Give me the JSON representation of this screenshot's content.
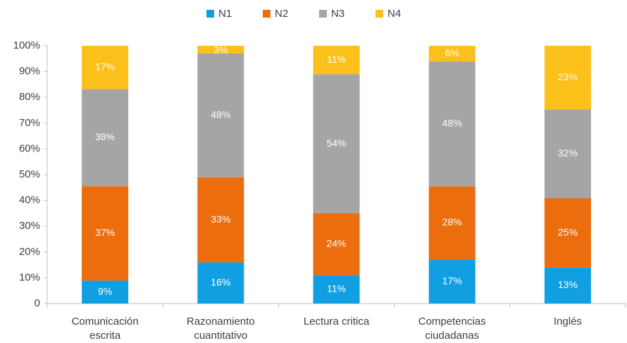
{
  "chart_data": {
    "type": "bar",
    "stacked": "percent",
    "categories": [
      [
        "Comunicación",
        "escrita"
      ],
      [
        "Razonamiento",
        "cuantitativo"
      ],
      [
        "Lectura critica"
      ],
      [
        "Competencias",
        "ciudadanas"
      ],
      [
        "Inglés"
      ]
    ],
    "series": [
      {
        "name": "N1",
        "color": "#119fe2",
        "values": [
          9,
          16,
          11,
          17,
          13
        ],
        "value_labels": [
          "9%",
          "16%",
          "11%",
          "17%",
          "13%"
        ]
      },
      {
        "name": "N2",
        "color": "#ec6d0d",
        "values": [
          37,
          33,
          24,
          28,
          25
        ],
        "value_labels": [
          "37%",
          "33%",
          "24%",
          "28%",
          "25%"
        ]
      },
      {
        "name": "N3",
        "color": "#a5a5a5",
        "values": [
          38,
          48,
          54,
          48,
          32
        ],
        "value_labels": [
          "38%",
          "48%",
          "54%",
          "48%",
          "32%"
        ]
      },
      {
        "name": "N4",
        "color": "#fcc01a",
        "values": [
          17,
          3,
          11,
          6,
          23
        ],
        "value_labels": [
          "17%",
          "3%",
          "11%",
          "6%",
          "23%"
        ]
      }
    ],
    "ylim": [
      0,
      100
    ],
    "yticks": [
      0,
      {
        "value": 10,
        "label": "10%"
      },
      {
        "value": 20,
        "label": "20%"
      },
      {
        "value": 30,
        "label": "30%"
      },
      {
        "value": 40,
        "label": "40%"
      },
      {
        "value": 50,
        "label": "50%"
      },
      {
        "value": 60,
        "label": "60%"
      },
      {
        "value": 70,
        "label": "70%"
      },
      {
        "value": 80,
        "label": "80%"
      },
      {
        "value": 90,
        "label": "90%"
      },
      {
        "value": 100,
        "label": "100%"
      }
    ],
    "legend": "top",
    "grid": false
  }
}
